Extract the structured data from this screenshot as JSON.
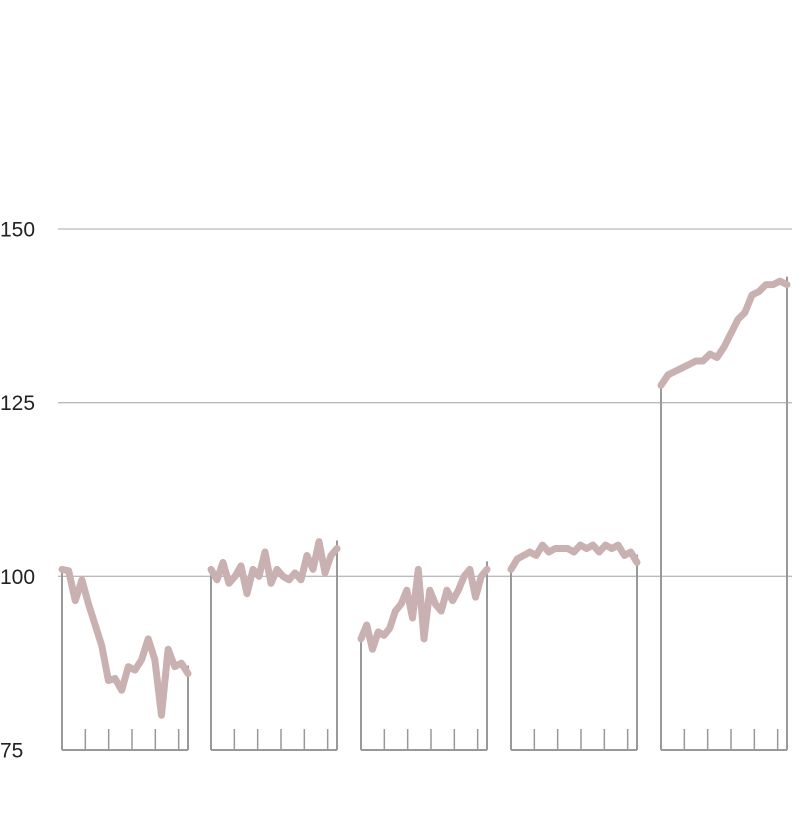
{
  "chart_data": {
    "type": "line",
    "ylim": [
      75,
      150
    ],
    "yticks": [
      75,
      100,
      125,
      150
    ],
    "grid": true,
    "series": [
      {
        "color": "#c9b1b1",
        "values": [
          101,
          100.8,
          96.5,
          99.5,
          96,
          93,
          90,
          85,
          85.3,
          83.6,
          87,
          86.5,
          88,
          91,
          88,
          80,
          89.5,
          87,
          87.5,
          86
        ]
      },
      {
        "color": "#c9b1b1",
        "values": [
          101,
          99.5,
          102,
          99,
          100,
          101.5,
          97.5,
          101,
          100,
          103.5,
          99,
          101,
          100,
          99.5,
          100.5,
          99.5,
          103,
          101,
          105,
          100.5,
          103,
          104
        ]
      },
      {
        "color": "#c9b1b1",
        "values": [
          91,
          93,
          89.5,
          92,
          91.5,
          92.5,
          95,
          96,
          98,
          94,
          101,
          91,
          98,
          96,
          95,
          98,
          96.5,
          98,
          100,
          101,
          97,
          100,
          101
        ]
      },
      {
        "color": "#c9b1b1",
        "values": [
          101,
          102.5,
          103,
          103.5,
          103,
          104.5,
          103.5,
          104,
          104,
          104,
          103.5,
          104.5,
          104,
          104.5,
          103.5,
          104.5,
          104,
          104.5,
          103,
          103.5,
          102
        ]
      },
      {
        "color": "#c9b1b1",
        "values": [
          127.5,
          129,
          129.5,
          130,
          130.5,
          131,
          131,
          132,
          131.5,
          133,
          135,
          137,
          138,
          140.5,
          141,
          142,
          142,
          142.5,
          142
        ]
      }
    ]
  }
}
